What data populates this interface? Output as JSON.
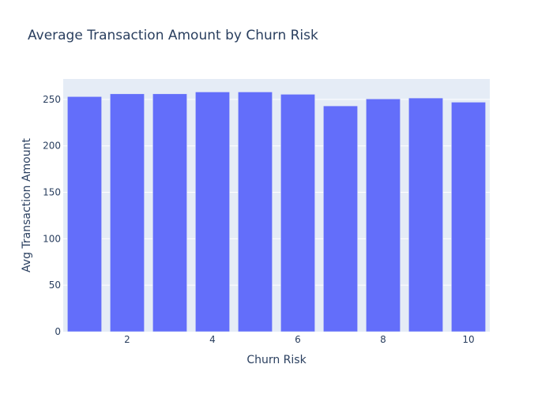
{
  "chart_data": {
    "type": "bar",
    "title": "Average Transaction Amount by Churn Risk",
    "xlabel": "Churn Risk",
    "ylabel": "Avg Transaction Amount",
    "x": [
      1,
      2,
      3,
      4,
      5,
      6,
      7,
      8,
      9,
      10
    ],
    "values": [
      253,
      256,
      256,
      258,
      258,
      255.5,
      243,
      250.5,
      251.5,
      247
    ],
    "xlim": [
      0.5,
      10.5
    ],
    "ylim": [
      0,
      272
    ],
    "xticks": [
      2,
      4,
      6,
      8,
      10
    ],
    "yticks": [
      0,
      50,
      100,
      150,
      200,
      250
    ],
    "grid": true,
    "legend": "none",
    "colors": {
      "bar": "#636efa",
      "plot_background": "#e5ecf6",
      "grid": "#ffffff",
      "text": "#2a3f5f"
    }
  }
}
